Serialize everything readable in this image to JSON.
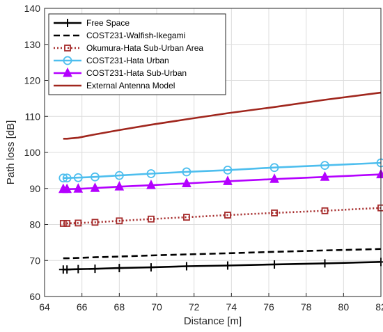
{
  "chart_data": {
    "type": "line",
    "xlabel": "Distance [m]",
    "ylabel": "Path loss [dB]",
    "xlim": [
      64,
      82
    ],
    "ylim": [
      60,
      140
    ],
    "xticks": [
      64,
      66,
      68,
      70,
      72,
      74,
      76,
      78,
      80,
      82
    ],
    "yticks": [
      60,
      70,
      80,
      90,
      100,
      110,
      120,
      130,
      140
    ],
    "grid": true,
    "legend_position": "top-left",
    "x": [
      65,
      65.2,
      65.8,
      66.7,
      68,
      69.7,
      71.6,
      73.8,
      76.3,
      79,
      82
    ],
    "series": [
      {
        "name": "Free Space",
        "color": "#000000",
        "line_style": "solid",
        "marker": "plus",
        "values": [
          67.5,
          67.5,
          67.6,
          67.7,
          67.9,
          68.1,
          68.4,
          68.6,
          68.9,
          69.2,
          69.6
        ]
      },
      {
        "name": "COST231-Walfish-Ikegami",
        "color": "#000000",
        "line_style": "dashed",
        "marker": "none",
        "values": [
          70.6,
          70.6,
          70.7,
          70.9,
          71.1,
          71.4,
          71.7,
          72.0,
          72.4,
          72.8,
          73.2
        ]
      },
      {
        "name": "Okumura-Hata Sub-Urban Area",
        "color": "#a52a2a",
        "line_style": "dotted",
        "marker": "square",
        "values": [
          80.3,
          80.3,
          80.4,
          80.6,
          81.0,
          81.5,
          82.0,
          82.6,
          83.2,
          83.8,
          84.6
        ]
      },
      {
        "name": "COST231-Hata Urban",
        "color": "#4dbeee",
        "line_style": "solid",
        "marker": "circle",
        "values": [
          92.9,
          92.9,
          93.0,
          93.2,
          93.6,
          94.1,
          94.6,
          95.1,
          95.8,
          96.4,
          97.1
        ]
      },
      {
        "name": "COST231-Hata Sub-Urban",
        "color": "#b400ff",
        "line_style": "solid",
        "marker": "triangle",
        "values": [
          89.8,
          89.8,
          89.9,
          90.1,
          90.5,
          90.9,
          91.4,
          92.0,
          92.6,
          93.2,
          93.9
        ]
      },
      {
        "name": "External Antenna Model",
        "color": "#a0261d",
        "line_style": "solid",
        "marker": "none",
        "values": [
          103.8,
          103.8,
          104.1,
          105.0,
          106.2,
          107.7,
          109.2,
          110.9,
          112.6,
          114.6,
          116.6
        ]
      }
    ]
  }
}
